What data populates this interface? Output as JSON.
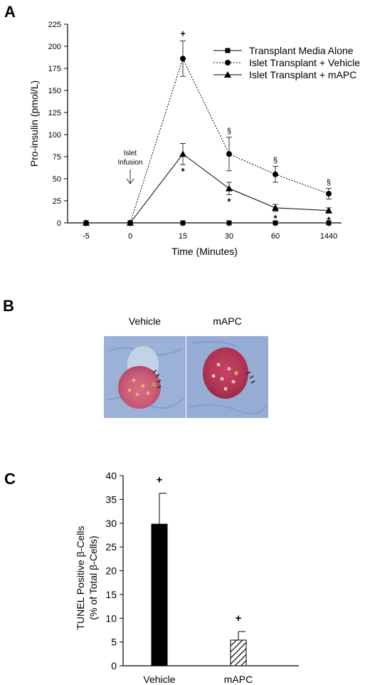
{
  "panels": {
    "a": {
      "letter": "A",
      "chart_data": {
        "type": "line",
        "x": [
          "-5",
          "0",
          "15",
          "30",
          "60",
          "1440"
        ],
        "xlabel": "Time (Minutes)",
        "ylabel": "Pro-insulin (pmol/L)",
        "ylim": [
          0,
          225
        ],
        "yticks": [
          "0",
          "25",
          "50",
          "75",
          "100",
          "125",
          "150",
          "175",
          "200",
          "225"
        ],
        "series": [
          {
            "name": "Transplant Media Alone",
            "marker": "square",
            "line": "none",
            "values": [
              0,
              0,
              0,
              0,
              0,
              0
            ],
            "errors": [
              0,
              0,
              0,
              0,
              0,
              0
            ]
          },
          {
            "name": "Islet Transplant + Vehicle",
            "marker": "circle",
            "line": "dotted",
            "values": [
              0,
              0,
              186,
              78,
              55,
              33
            ],
            "errors": [
              0,
              0,
              20,
              19,
              9,
              6
            ]
          },
          {
            "name": "Islet Transplant + mAPC",
            "marker": "triangle",
            "line": "solid",
            "values": [
              0,
              0,
              78,
              39,
              17,
              14
            ],
            "errors": [
              0,
              0,
              12,
              7,
              4,
              3
            ]
          }
        ],
        "annotations": {
          "plus_label": "+",
          "section_label": "§",
          "star_label": "*",
          "arrow_text": [
            "Islet",
            "Infusion"
          ]
        },
        "legend_position": "top-right"
      }
    },
    "b": {
      "letter": "B",
      "images": [
        {
          "label": "Vehicle"
        },
        {
          "label": "mAPC"
        }
      ]
    },
    "c": {
      "letter": "C",
      "chart_data": {
        "type": "bar",
        "categories": [
          "Vehicle",
          "mAPC"
        ],
        "values": [
          29.8,
          5.4
        ],
        "errors": [
          6.5,
          1.8
        ],
        "bar_styles": [
          "solid-black",
          "hatched"
        ],
        "ylabel_lines": [
          "TUNEL Positive β-Cells",
          "(% of Total β-Cells)"
        ],
        "ylim": [
          0,
          40
        ],
        "yticks": [
          "0",
          "5",
          "10",
          "15",
          "20",
          "25",
          "30",
          "35",
          "40"
        ],
        "annotation": "+"
      }
    }
  }
}
